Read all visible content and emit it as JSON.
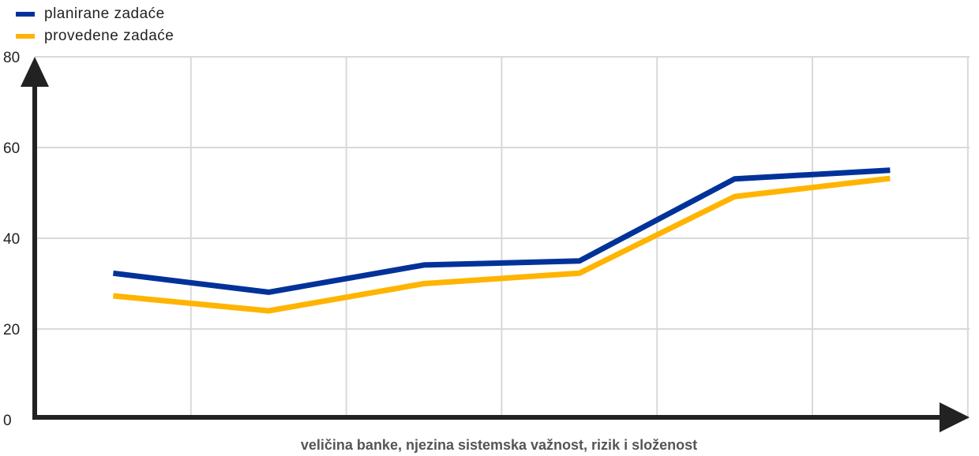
{
  "chart_data": {
    "type": "line",
    "x": [
      1,
      2,
      3,
      4,
      5,
      6
    ],
    "series": [
      {
        "name": "planirane zadaće",
        "color": "#003299",
        "values": [
          32.3,
          28.1,
          34.1,
          35.0,
          53.1,
          55.0
        ]
      },
      {
        "name": "provedene zadaće",
        "color": "#FFB400",
        "values": [
          27.3,
          24.0,
          30.0,
          32.3,
          49.2,
          53.2
        ]
      }
    ],
    "title": "",
    "xlabel": "veličina banke, njezina sistemska važnost, rizik i složenost",
    "ylabel": "",
    "ylim": [
      0,
      80
    ],
    "yticks": [
      0,
      20,
      40,
      60,
      80
    ],
    "grid": true,
    "legend_position": "top-left"
  },
  "colors": {
    "axis": "#222222",
    "grid": "#d9d9d9"
  }
}
